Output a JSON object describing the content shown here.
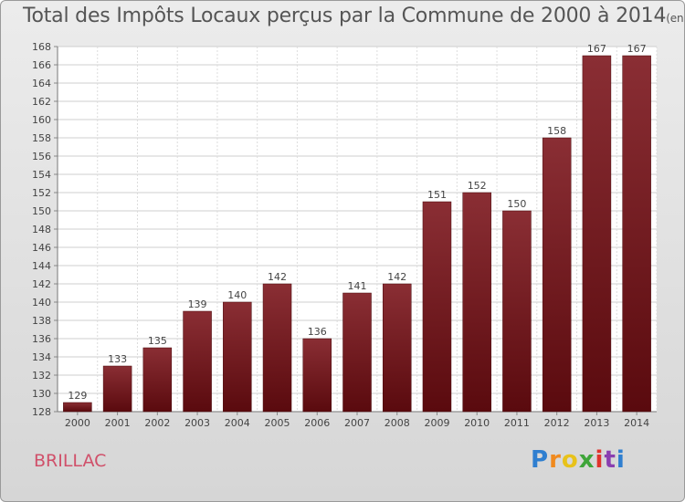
{
  "header": {
    "title": "Total des Impôts Locaux perçus par la Commune de 2000 à 2014",
    "unit": "(en milliers d'€)"
  },
  "commune": "BRILLAC",
  "logo": {
    "letters": [
      "P",
      "r",
      "o",
      "x",
      "i",
      "t",
      "i"
    ],
    "colors": [
      "#2f7fd0",
      "#f08a1e",
      "#e8c21a",
      "#3fa53a",
      "#e0332c",
      "#8a3fb0",
      "#2f7fd0"
    ]
  },
  "chart_data": {
    "type": "bar",
    "title": "Total des Impôts Locaux perçus par la Commune de 2000 à 2014",
    "xlabel": "",
    "ylabel": "",
    "categories": [
      "2000",
      "2001",
      "2002",
      "2003",
      "2004",
      "2005",
      "2006",
      "2007",
      "2008",
      "2009",
      "2010",
      "2011",
      "2012",
      "2013",
      "2014"
    ],
    "values": [
      129,
      133,
      135,
      139,
      140,
      142,
      136,
      141,
      142,
      151,
      152,
      150,
      158,
      167,
      167
    ],
    "ylim": [
      128,
      168
    ],
    "yticks": [
      128,
      130,
      132,
      134,
      136,
      138,
      140,
      142,
      144,
      146,
      148,
      150,
      152,
      154,
      156,
      158,
      160,
      162,
      164,
      166,
      168
    ],
    "grid": true,
    "bar_color": "#7a1a22"
  }
}
